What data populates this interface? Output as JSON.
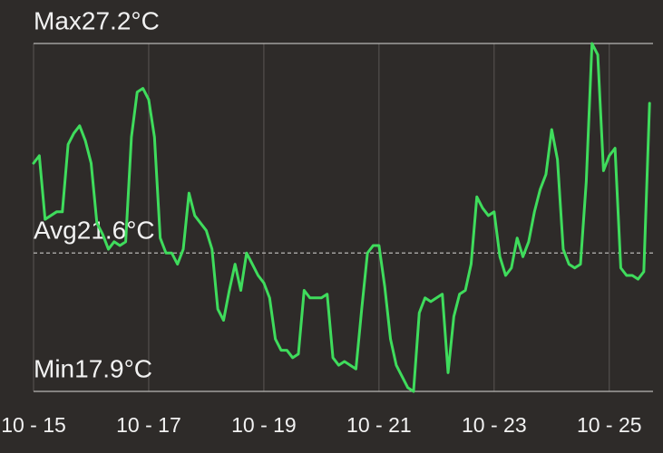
{
  "chart_data": {
    "type": "line",
    "x": [
      15.0,
      15.1,
      15.2,
      15.3,
      15.4,
      15.5,
      15.6,
      15.7,
      15.8,
      15.9,
      16.0,
      16.1,
      16.2,
      16.3,
      16.4,
      16.5,
      16.6,
      16.7,
      16.8,
      16.9,
      17.0,
      17.1,
      17.2,
      17.3,
      17.4,
      17.5,
      17.6,
      17.7,
      17.8,
      17.9,
      18.0,
      18.1,
      18.2,
      18.3,
      18.4,
      18.5,
      18.6,
      18.7,
      18.8,
      18.9,
      19.0,
      19.1,
      19.2,
      19.3,
      19.4,
      19.5,
      19.6,
      19.7,
      19.8,
      19.9,
      20.0,
      20.1,
      20.2,
      20.3,
      20.4,
      20.5,
      20.6,
      20.7,
      20.8,
      20.9,
      21.0,
      21.1,
      21.2,
      21.3,
      21.4,
      21.5,
      21.6,
      21.7,
      21.8,
      21.9,
      22.0,
      22.1,
      22.2,
      22.3,
      22.4,
      22.5,
      22.6,
      22.7,
      22.8,
      22.9,
      23.0,
      23.1,
      23.2,
      23.3,
      23.4,
      23.5,
      23.6,
      23.7,
      23.8,
      23.9,
      24.0,
      24.1,
      24.2,
      24.3,
      24.4,
      24.5,
      24.6,
      24.7,
      24.8,
      24.9,
      25.0,
      25.1,
      25.2,
      25.3,
      25.4,
      25.5,
      25.6,
      25.7
    ],
    "series": [
      {
        "color": "#3fdc5c",
        "values": [
          24.0,
          24.2,
          22.5,
          22.6,
          22.7,
          22.7,
          24.5,
          24.8,
          25.0,
          24.6,
          24.0,
          22.4,
          22.1,
          21.7,
          21.9,
          21.8,
          21.9,
          24.7,
          25.9,
          26.0,
          25.7,
          24.7,
          22.0,
          21.6,
          21.6,
          21.3,
          21.7,
          23.2,
          22.6,
          22.4,
          22.2,
          21.7,
          20.1,
          19.8,
          20.6,
          21.3,
          20.6,
          21.6,
          21.3,
          21.0,
          20.8,
          20.4,
          19.3,
          19.0,
          19.0,
          18.8,
          18.9,
          20.6,
          20.4,
          20.4,
          20.4,
          20.5,
          18.8,
          18.6,
          18.7,
          18.6,
          18.5,
          20.1,
          21.6,
          21.8,
          21.8,
          20.7,
          19.3,
          18.6,
          18.3,
          18.0,
          17.9,
          20.0,
          20.4,
          20.3,
          20.4,
          20.5,
          18.4,
          19.9,
          20.5,
          20.6,
          21.3,
          23.1,
          22.8,
          22.6,
          22.7,
          21.5,
          21.0,
          21.2,
          22.0,
          21.5,
          21.9,
          22.7,
          23.3,
          23.7,
          24.9,
          24.1,
          21.7,
          21.3,
          21.2,
          21.3,
          23.5,
          27.2,
          26.9,
          23.8,
          24.2,
          24.4,
          21.2,
          21.0,
          21.0,
          20.9,
          21.1,
          25.6
        ]
      }
    ],
    "xlim": [
      15,
      25.76
    ],
    "xticks": [
      {
        "value": 15,
        "label": "10 - 15"
      },
      {
        "value": 17,
        "label": "10 - 17"
      },
      {
        "value": 19,
        "label": "10 - 19"
      },
      {
        "value": 21,
        "label": "10 - 21"
      },
      {
        "value": 23,
        "label": "10 - 23"
      },
      {
        "value": 25,
        "label": "10 - 25"
      }
    ],
    "ylim": [
      17.9,
      27.2
    ],
    "yticks": [
      {
        "value": 27.2,
        "label": "Max27.2°C",
        "line": "solid"
      },
      {
        "value": 21.6,
        "label": "Avg21.6°C",
        "line": "dashed"
      },
      {
        "value": 17.9,
        "label": "Min17.9°C",
        "line": "solid"
      }
    ]
  }
}
